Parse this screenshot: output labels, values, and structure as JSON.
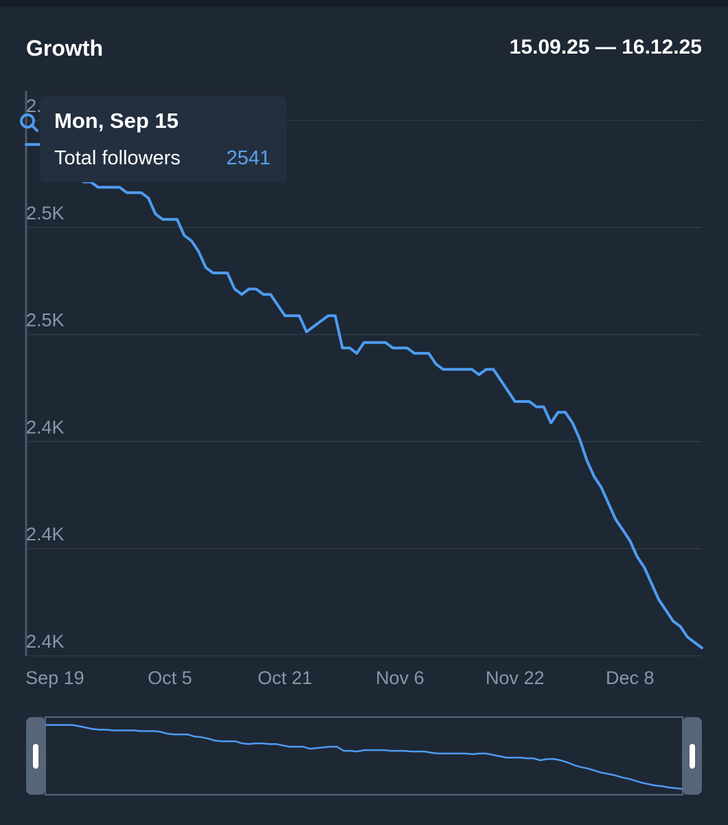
{
  "header": {
    "title": "Growth",
    "date_range": "15.09.25 — 16.12.25"
  },
  "tooltip": {
    "date": "Mon, Sep 15",
    "label": "Total followers",
    "value": "2541"
  },
  "colors": {
    "background": "#1e2734",
    "line": "#4d9cf0",
    "grid": "#2f3a48",
    "axis_text": "#8a96a6",
    "tooltip_value": "#5aa2ee"
  },
  "icons": [
    "zoom-icon",
    "handle-left-icon",
    "handle-right-icon"
  ],
  "chart_data": {
    "type": "line",
    "title": "Growth",
    "xlabel": "",
    "ylabel": "",
    "ytick_labels": [
      "2.4K",
      "2.4K",
      "2.4K",
      "2.5K",
      "2.5K",
      "2."
    ],
    "xtick_labels": [
      "Sep 19",
      "Oct 5",
      "Oct 21",
      "Nov 6",
      "Nov 22",
      "Dec 8"
    ],
    "x_start": "2025-09-15",
    "x_end": "2025-12-16",
    "ylim": [
      2350,
      2550
    ],
    "grid": true,
    "legend": "none",
    "series": [
      {
        "values": [
          2541,
          2541,
          2541,
          2541,
          2541,
          2537,
          2533,
          2529,
          2527,
          2527,
          2525,
          2525,
          2525,
          2525,
          2523,
          2523,
          2523,
          2521,
          2515,
          2513,
          2513,
          2513,
          2507,
          2505,
          2501,
          2495,
          2493,
          2493,
          2493,
          2487,
          2485,
          2487,
          2487,
          2485,
          2485,
          2481,
          2477,
          2477,
          2477,
          2471,
          2473,
          2475,
          2477,
          2477,
          2465,
          2465,
          2463,
          2467,
          2467,
          2467,
          2467,
          2465,
          2465,
          2465,
          2463,
          2463,
          2463,
          2459,
          2457,
          2457,
          2457,
          2457,
          2457,
          2455,
          2457,
          2457,
          2453,
          2449,
          2445,
          2445,
          2445,
          2443,
          2443,
          2437,
          2441,
          2441,
          2437,
          2431,
          2423,
          2417,
          2413,
          2407,
          2401,
          2397,
          2393,
          2387,
          2383,
          2377,
          2371,
          2367,
          2363,
          2361,
          2357,
          2355,
          2353
        ]
      }
    ]
  }
}
